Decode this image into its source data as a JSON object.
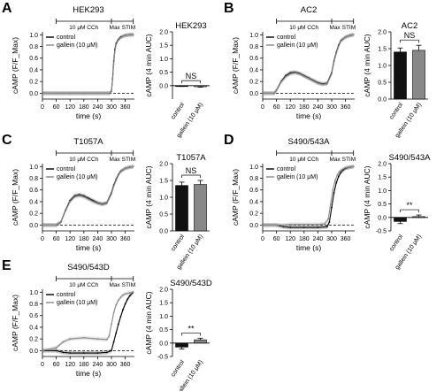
{
  "chart_data": [
    {
      "panel": "A",
      "title": "HEK293",
      "type": "line",
      "xlabel": "time (s)",
      "ylabel": "cAMP (F/F_Max)",
      "xticks": [
        0,
        60,
        120,
        180,
        240,
        300,
        360
      ],
      "xlim": [
        0,
        400
      ],
      "yticks": [
        0.0,
        0.2,
        0.4,
        0.6,
        0.8,
        1.0
      ],
      "ylim": [
        -0.1,
        1.05
      ],
      "stim_labels": [
        "10 μM CCh",
        "Max STIM"
      ],
      "series": [
        {
          "name": "control",
          "color": "#000000",
          "x": [
            0,
            60,
            120,
            180,
            240,
            290,
            300,
            305,
            310,
            315,
            320,
            330,
            340,
            360,
            380,
            395
          ],
          "y": [
            0.0,
            0.0,
            0.0,
            0.0,
            0.0,
            0.0,
            0.03,
            0.25,
            0.55,
            0.75,
            0.85,
            0.92,
            0.96,
            0.99,
            1.0,
            1.0
          ]
        },
        {
          "name": "gallein (10 μM)",
          "color": "#888888",
          "x": [
            0,
            60,
            120,
            180,
            240,
            290,
            300,
            305,
            310,
            315,
            320,
            330,
            340,
            360,
            380,
            395
          ],
          "y": [
            0.0,
            0.0,
            0.0,
            0.0,
            0.0,
            0.0,
            0.03,
            0.22,
            0.5,
            0.72,
            0.83,
            0.91,
            0.95,
            0.99,
            1.0,
            1.0
          ]
        }
      ]
    },
    {
      "panel": "A",
      "title": "HEK293",
      "type": "bar",
      "ylabel": "cAMP (4 min AUC)",
      "yticks": [
        0.0,
        0.5,
        1.0,
        1.5,
        2.0
      ],
      "ylim": [
        -0.5,
        2.0
      ],
      "categories": [
        "control",
        "gallein (10 μM)"
      ],
      "values": [
        -0.02,
        -0.04
      ],
      "errors": [
        0.01,
        0.02
      ],
      "colors": [
        "#111111",
        "#888888"
      ],
      "annotation": "NS"
    },
    {
      "panel": "B",
      "title": "AC2",
      "type": "line",
      "xlabel": "time (s)",
      "ylabel": "cAMP (F/F_Max)",
      "xticks": [
        0,
        60,
        120,
        180,
        240,
        300,
        360
      ],
      "xlim": [
        0,
        400
      ],
      "yticks": [
        0.0,
        0.2,
        0.4,
        0.6,
        0.8,
        1.0
      ],
      "ylim": [
        -0.1,
        1.05
      ],
      "stim_labels": [
        "10 μM CCh",
        "Max STIM"
      ],
      "series": [
        {
          "name": "control",
          "color": "#000000",
          "x": [
            0,
            50,
            60,
            80,
            100,
            120,
            140,
            160,
            180,
            200,
            220,
            240,
            260,
            280,
            300,
            310,
            320,
            330,
            340,
            360,
            380,
            395
          ],
          "y": [
            0.0,
            0.0,
            0.05,
            0.2,
            0.3,
            0.35,
            0.36,
            0.34,
            0.3,
            0.26,
            0.22,
            0.18,
            0.16,
            0.17,
            0.35,
            0.55,
            0.7,
            0.82,
            0.9,
            0.96,
            0.99,
            1.0
          ]
        },
        {
          "name": "gallein (10 μM)",
          "color": "#888888",
          "x": [
            0,
            50,
            60,
            80,
            100,
            120,
            140,
            160,
            180,
            200,
            220,
            240,
            260,
            280,
            300,
            310,
            320,
            330,
            340,
            360,
            380,
            395
          ],
          "y": [
            0.0,
            0.0,
            0.05,
            0.19,
            0.28,
            0.33,
            0.35,
            0.33,
            0.29,
            0.25,
            0.21,
            0.17,
            0.15,
            0.16,
            0.33,
            0.53,
            0.68,
            0.8,
            0.89,
            0.96,
            0.99,
            1.0
          ]
        }
      ]
    },
    {
      "panel": "B",
      "title": "AC2",
      "type": "bar",
      "ylabel": "cAMP (4 min AUC)",
      "yticks": [
        0.0,
        0.5,
        1.0,
        1.5,
        2.0
      ],
      "ylim": [
        0.0,
        2.0
      ],
      "categories": [
        "control",
        "gallein (10 μM)"
      ],
      "values": [
        1.4,
        1.45
      ],
      "errors": [
        0.12,
        0.15
      ],
      "colors": [
        "#111111",
        "#888888"
      ],
      "annotation": "NS"
    },
    {
      "panel": "C",
      "title": "T1057A",
      "type": "line",
      "xlabel": "time (s)",
      "ylabel": "cAMP (F/F_Max)",
      "xticks": [
        0,
        60,
        120,
        180,
        240,
        300,
        360
      ],
      "xlim": [
        0,
        400
      ],
      "yticks": [
        0.0,
        0.2,
        0.4,
        0.6,
        0.8,
        1.0
      ],
      "ylim": [
        -0.1,
        1.05
      ],
      "stim_labels": [
        "10 μM CCh",
        "Max STIM"
      ],
      "series": [
        {
          "name": "control",
          "color": "#000000",
          "x": [
            0,
            60,
            80,
            100,
            120,
            140,
            160,
            180,
            200,
            220,
            240,
            260,
            280,
            300,
            310,
            320,
            330,
            340,
            360,
            380,
            395
          ],
          "y": [
            0.0,
            0.0,
            0.05,
            0.25,
            0.42,
            0.5,
            0.52,
            0.5,
            0.46,
            0.42,
            0.38,
            0.36,
            0.38,
            0.55,
            0.68,
            0.78,
            0.86,
            0.92,
            0.97,
            0.99,
            1.0
          ]
        },
        {
          "name": "gallein (10 μM)",
          "color": "#888888",
          "x": [
            0,
            60,
            80,
            100,
            120,
            140,
            160,
            180,
            200,
            220,
            240,
            260,
            280,
            300,
            310,
            320,
            330,
            340,
            360,
            380,
            395
          ],
          "y": [
            0.0,
            0.0,
            0.05,
            0.24,
            0.4,
            0.48,
            0.5,
            0.48,
            0.44,
            0.4,
            0.37,
            0.35,
            0.37,
            0.53,
            0.66,
            0.76,
            0.85,
            0.91,
            0.97,
            0.99,
            1.0
          ]
        }
      ]
    },
    {
      "panel": "C",
      "title": "T1057A",
      "type": "bar",
      "ylabel": "cAMP (4 min AUC)",
      "yticks": [
        0.0,
        0.5,
        1.0,
        1.5,
        2.0
      ],
      "ylim": [
        0.0,
        2.0
      ],
      "categories": [
        "control",
        "gallein (10 μM)"
      ],
      "values": [
        1.35,
        1.38
      ],
      "errors": [
        0.1,
        0.12
      ],
      "colors": [
        "#111111",
        "#888888"
      ],
      "annotation": "NS"
    },
    {
      "panel": "D",
      "title": "S490/543A",
      "type": "line",
      "xlabel": "time (s)",
      "ylabel": "cAMP (F/F_Max)",
      "xticks": [
        0,
        60,
        120,
        180,
        240,
        300,
        360
      ],
      "xlim": [
        0,
        400
      ],
      "yticks": [
        0.0,
        0.2,
        0.4,
        0.6,
        0.8,
        1.0
      ],
      "ylim": [
        -0.1,
        1.05
      ],
      "stim_labels": [
        "10 μM CCh",
        "Max STIM"
      ],
      "series": [
        {
          "name": "control",
          "color": "#000000",
          "x": [
            0,
            60,
            90,
            120,
            180,
            240,
            280,
            290,
            300,
            310,
            320,
            330,
            340,
            350,
            360,
            380,
            395
          ],
          "y": [
            0.0,
            0.0,
            -0.03,
            -0.04,
            -0.04,
            -0.04,
            -0.03,
            0.05,
            0.3,
            0.55,
            0.72,
            0.83,
            0.9,
            0.94,
            0.97,
            0.99,
            1.0
          ]
        },
        {
          "name": "gallein (10 μM)",
          "color": "#888888",
          "x": [
            0,
            60,
            90,
            120,
            180,
            240,
            270,
            285,
            295,
            305,
            315,
            325,
            335,
            345,
            360,
            380,
            395
          ],
          "y": [
            0.0,
            0.0,
            0.0,
            0.01,
            0.01,
            0.01,
            0.02,
            0.1,
            0.35,
            0.6,
            0.76,
            0.86,
            0.92,
            0.95,
            0.98,
            0.99,
            1.0
          ]
        }
      ]
    },
    {
      "panel": "D",
      "title": "S490/543A",
      "type": "bar",
      "ylabel": "cAMP (4 min AUC)",
      "yticks": [
        -0.5,
        0.0,
        0.5,
        1.0,
        1.5,
        2.0
      ],
      "ylim": [
        -0.5,
        2.0
      ],
      "categories": [
        "control",
        "gallein (10 μM)"
      ],
      "values": [
        -0.15,
        0.03
      ],
      "errors": [
        0.08,
        0.06
      ],
      "colors": [
        "#111111",
        "#888888"
      ],
      "annotation": "**"
    },
    {
      "panel": "E",
      "title": "S490/543D",
      "type": "line",
      "xlabel": "time (s)",
      "ylabel": "cAMP (F/F_Max)",
      "xticks": [
        0,
        60,
        120,
        180,
        240,
        300,
        360
      ],
      "xlim": [
        0,
        400
      ],
      "yticks": [
        0.0,
        0.2,
        0.4,
        0.6,
        0.8,
        1.0
      ],
      "ylim": [
        -0.1,
        1.05
      ],
      "stim_labels": [
        "10 μM CCh",
        "Max STIM"
      ],
      "series": [
        {
          "name": "control",
          "color": "#000000",
          "x": [
            0,
            60,
            90,
            120,
            180,
            240,
            280,
            300,
            310,
            320,
            330,
            340,
            350,
            360,
            370,
            380,
            395
          ],
          "y": [
            0.0,
            0.0,
            -0.03,
            -0.04,
            -0.04,
            -0.04,
            -0.03,
            0.0,
            0.15,
            0.3,
            0.45,
            0.58,
            0.7,
            0.8,
            0.88,
            0.94,
            1.0
          ]
        },
        {
          "name": "gallein (10 μM)",
          "color": "#888888",
          "x": [
            0,
            60,
            90,
            120,
            180,
            240,
            280,
            290,
            300,
            310,
            320,
            330,
            340,
            350,
            360,
            380,
            395
          ],
          "y": [
            0.0,
            0.05,
            0.15,
            0.2,
            0.22,
            0.2,
            0.19,
            0.25,
            0.45,
            0.65,
            0.78,
            0.86,
            0.91,
            0.95,
            0.97,
            0.99,
            1.0
          ]
        }
      ]
    },
    {
      "panel": "E",
      "title": "S490/543D",
      "type": "bar",
      "ylabel": "cAMP (4 min AUC)",
      "yticks": [
        -0.5,
        0.0,
        0.5,
        1.0,
        1.5,
        2.0
      ],
      "ylim": [
        -0.5,
        2.0
      ],
      "categories": [
        "control",
        "gallein (10 μM)"
      ],
      "values": [
        -0.15,
        0.12
      ],
      "errors": [
        0.07,
        0.06
      ],
      "colors": [
        "#111111",
        "#888888"
      ],
      "annotation": "**"
    }
  ]
}
